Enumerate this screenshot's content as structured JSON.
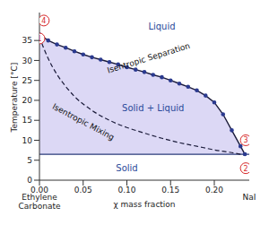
{
  "chart_data": {
    "type": "line",
    "x_label": "χ mass fraction",
    "y_label": "Temperature [°C]",
    "xlim": [
      0,
      0.24
    ],
    "ylim": [
      0,
      42
    ],
    "xticks": [
      {
        "value": 0,
        "label": "0.00"
      },
      {
        "value": 0.05,
        "label": "0.05"
      },
      {
        "value": 0.1,
        "label": "0.10"
      },
      {
        "value": 0.15,
        "label": "0.15"
      },
      {
        "value": 0.2,
        "label": "0.20"
      }
    ],
    "yticks": [
      0,
      5,
      10,
      15,
      20,
      25,
      30,
      35
    ],
    "endpoint_labels": {
      "left": "Ethylene Carbonate",
      "right": "NaI"
    },
    "series": [
      {
        "name": "Isentropic Separation",
        "color": "#1b1b3a",
        "marker": "circle",
        "line_style": "solid",
        "label_at": [
          0.125,
          30.5
        ],
        "x": [
          0,
          0.01,
          0.02,
          0.03,
          0.04,
          0.05,
          0.06,
          0.07,
          0.08,
          0.09,
          0.1,
          0.11,
          0.12,
          0.13,
          0.14,
          0.15,
          0.16,
          0.17,
          0.18,
          0.19,
          0.2,
          0.21,
          0.22,
          0.23,
          0.235
        ],
        "values": [
          36.5,
          35,
          34,
          33.2,
          32.3,
          31.5,
          30.8,
          30.2,
          29.6,
          29,
          28.3,
          27.7,
          27.1,
          26.4,
          25.8,
          25,
          24.2,
          23.4,
          22.5,
          21.2,
          19.5,
          16.5,
          12.5,
          8.5,
          6.5
        ]
      },
      {
        "name": "Isentropic Mixing",
        "color": "#1b1b3a",
        "line_style": "dashed",
        "label_at": [
          0.05,
          14.5
        ],
        "x": [
          0,
          0.005,
          0.01,
          0.02,
          0.03,
          0.04,
          0.06,
          0.08,
          0.1,
          0.12,
          0.14,
          0.16,
          0.18,
          0.2,
          0.22,
          0.235
        ],
        "values": [
          36,
          33,
          30.5,
          26.5,
          23.5,
          21,
          17.5,
          15,
          13.2,
          11.8,
          10.5,
          9.4,
          8.5,
          7.6,
          6.9,
          6.3
        ]
      },
      {
        "color": "#2a3a7a",
        "line_style": "solid",
        "x": [
          0,
          0.24
        ],
        "values": [
          6.5,
          6.5
        ]
      }
    ],
    "regions": [
      {
        "label": "Liquid",
        "x": 0.14,
        "y": 38.5,
        "color": "#ffffff"
      },
      {
        "label": "Solid + Liquid",
        "x": 0.13,
        "y": 18,
        "color": "#dcd8f5"
      },
      {
        "label": "Solid",
        "x": 0.1,
        "y": 3,
        "color": "#ffffff"
      }
    ],
    "markers": [
      {
        "label": "1",
        "x": 0,
        "y": 35.5
      },
      {
        "label": "4",
        "x": 0.005,
        "y": 40
      },
      {
        "label": "3",
        "x": 0.236,
        "y": 10
      },
      {
        "label": "2",
        "x": 0.236,
        "y": 3
      }
    ],
    "marker_color": "#d62728"
  }
}
